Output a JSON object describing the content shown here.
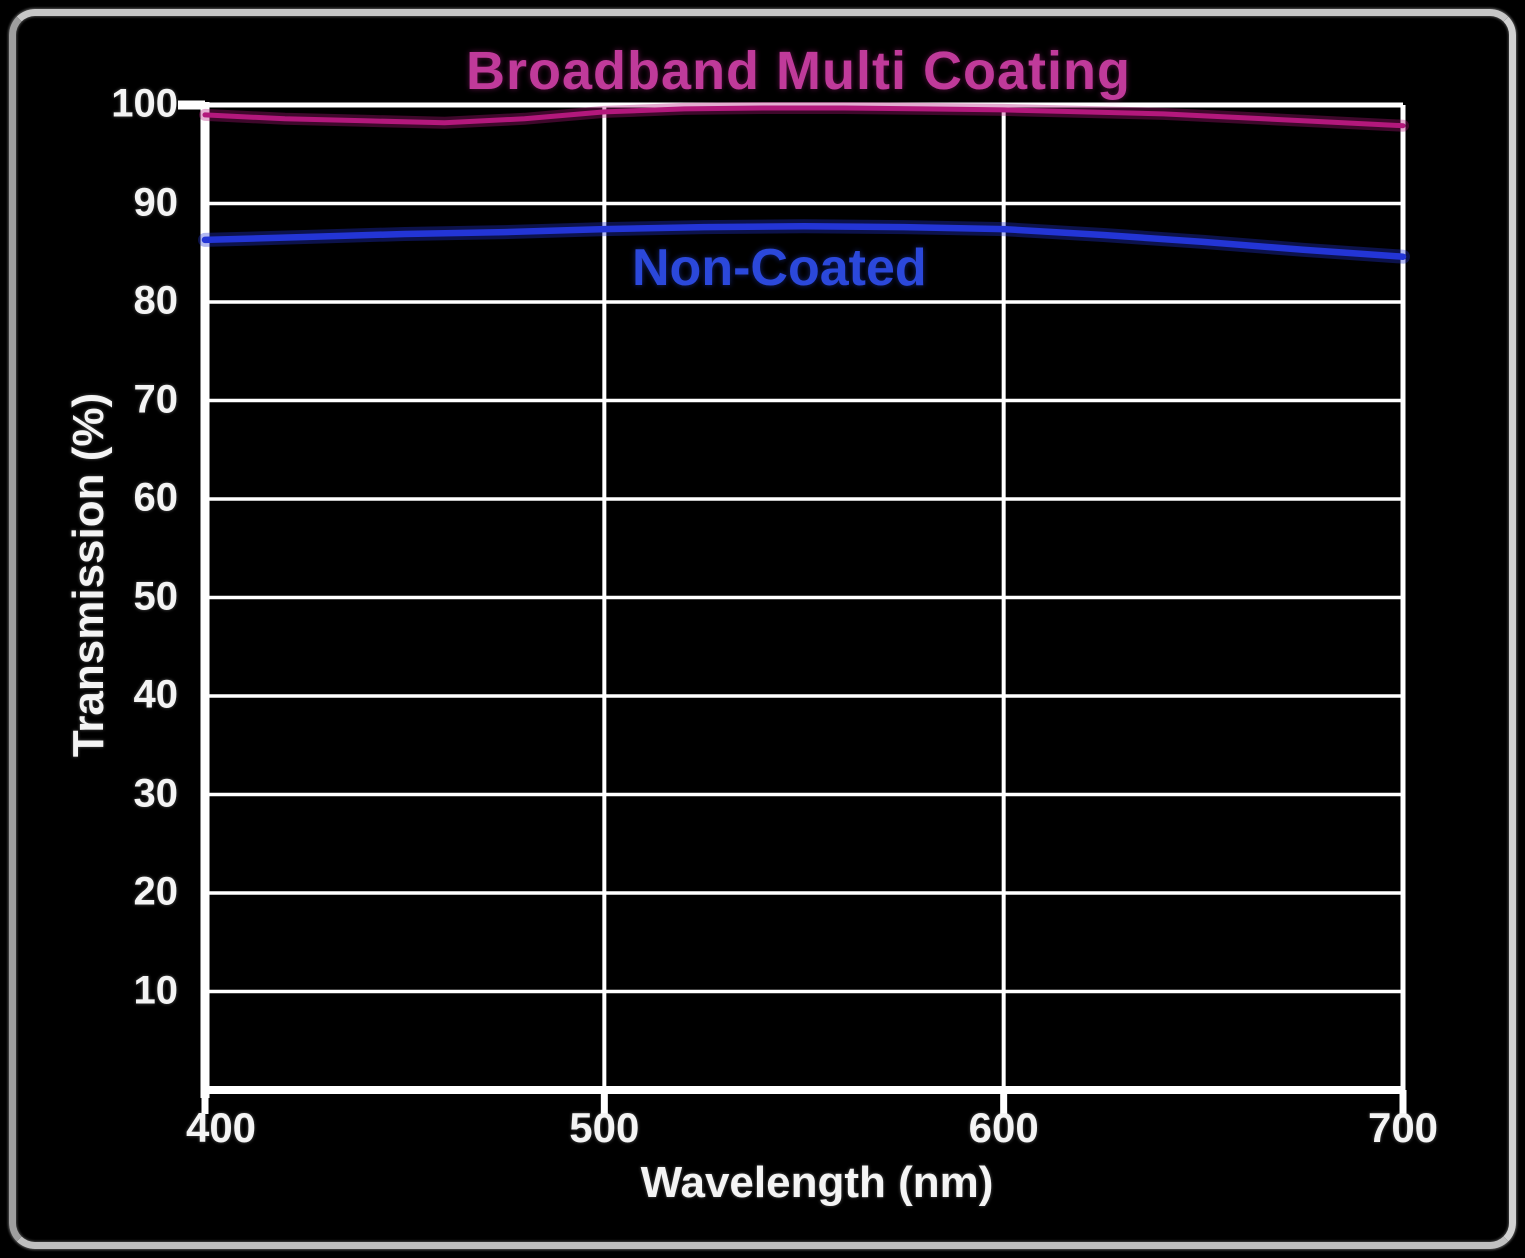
{
  "chart_data": {
    "type": "line",
    "title": "Broadband Multi Coating",
    "xlabel": "Wavelength (nm)",
    "ylabel": "Transmission (%)",
    "xlim": [
      400,
      700
    ],
    "ylim": [
      0,
      100
    ],
    "x_ticks": [
      400,
      500,
      600,
      700
    ],
    "y_ticks": [
      100,
      90,
      80,
      70,
      60,
      50,
      40,
      30,
      20,
      10
    ],
    "grid": true,
    "legend_position": "inline-labels",
    "background_color": "#000000",
    "grid_color": "#ffffff",
    "frame_color": "#b4b4b4",
    "series": [
      {
        "name": "Broadband Multi Coating",
        "color": "#b3187c",
        "label_color": "#c03a9a",
        "x": [
          400,
          420,
          440,
          460,
          480,
          500,
          520,
          540,
          560,
          580,
          600,
          620,
          640,
          660,
          680,
          700
        ],
        "values": [
          99.0,
          98.6,
          98.4,
          98.2,
          98.6,
          99.3,
          99.6,
          99.7,
          99.7,
          99.6,
          99.5,
          99.3,
          99.1,
          98.7,
          98.3,
          97.9
        ]
      },
      {
        "name": "Non-Coated",
        "color": "#2335d6",
        "label_color": "#2b48db",
        "x": [
          400,
          425,
          450,
          475,
          500,
          525,
          550,
          575,
          600,
          625,
          650,
          675,
          700
        ],
        "values": [
          86.3,
          86.6,
          86.9,
          87.1,
          87.4,
          87.6,
          87.7,
          87.6,
          87.4,
          86.8,
          86.1,
          85.3,
          84.6
        ]
      }
    ]
  }
}
